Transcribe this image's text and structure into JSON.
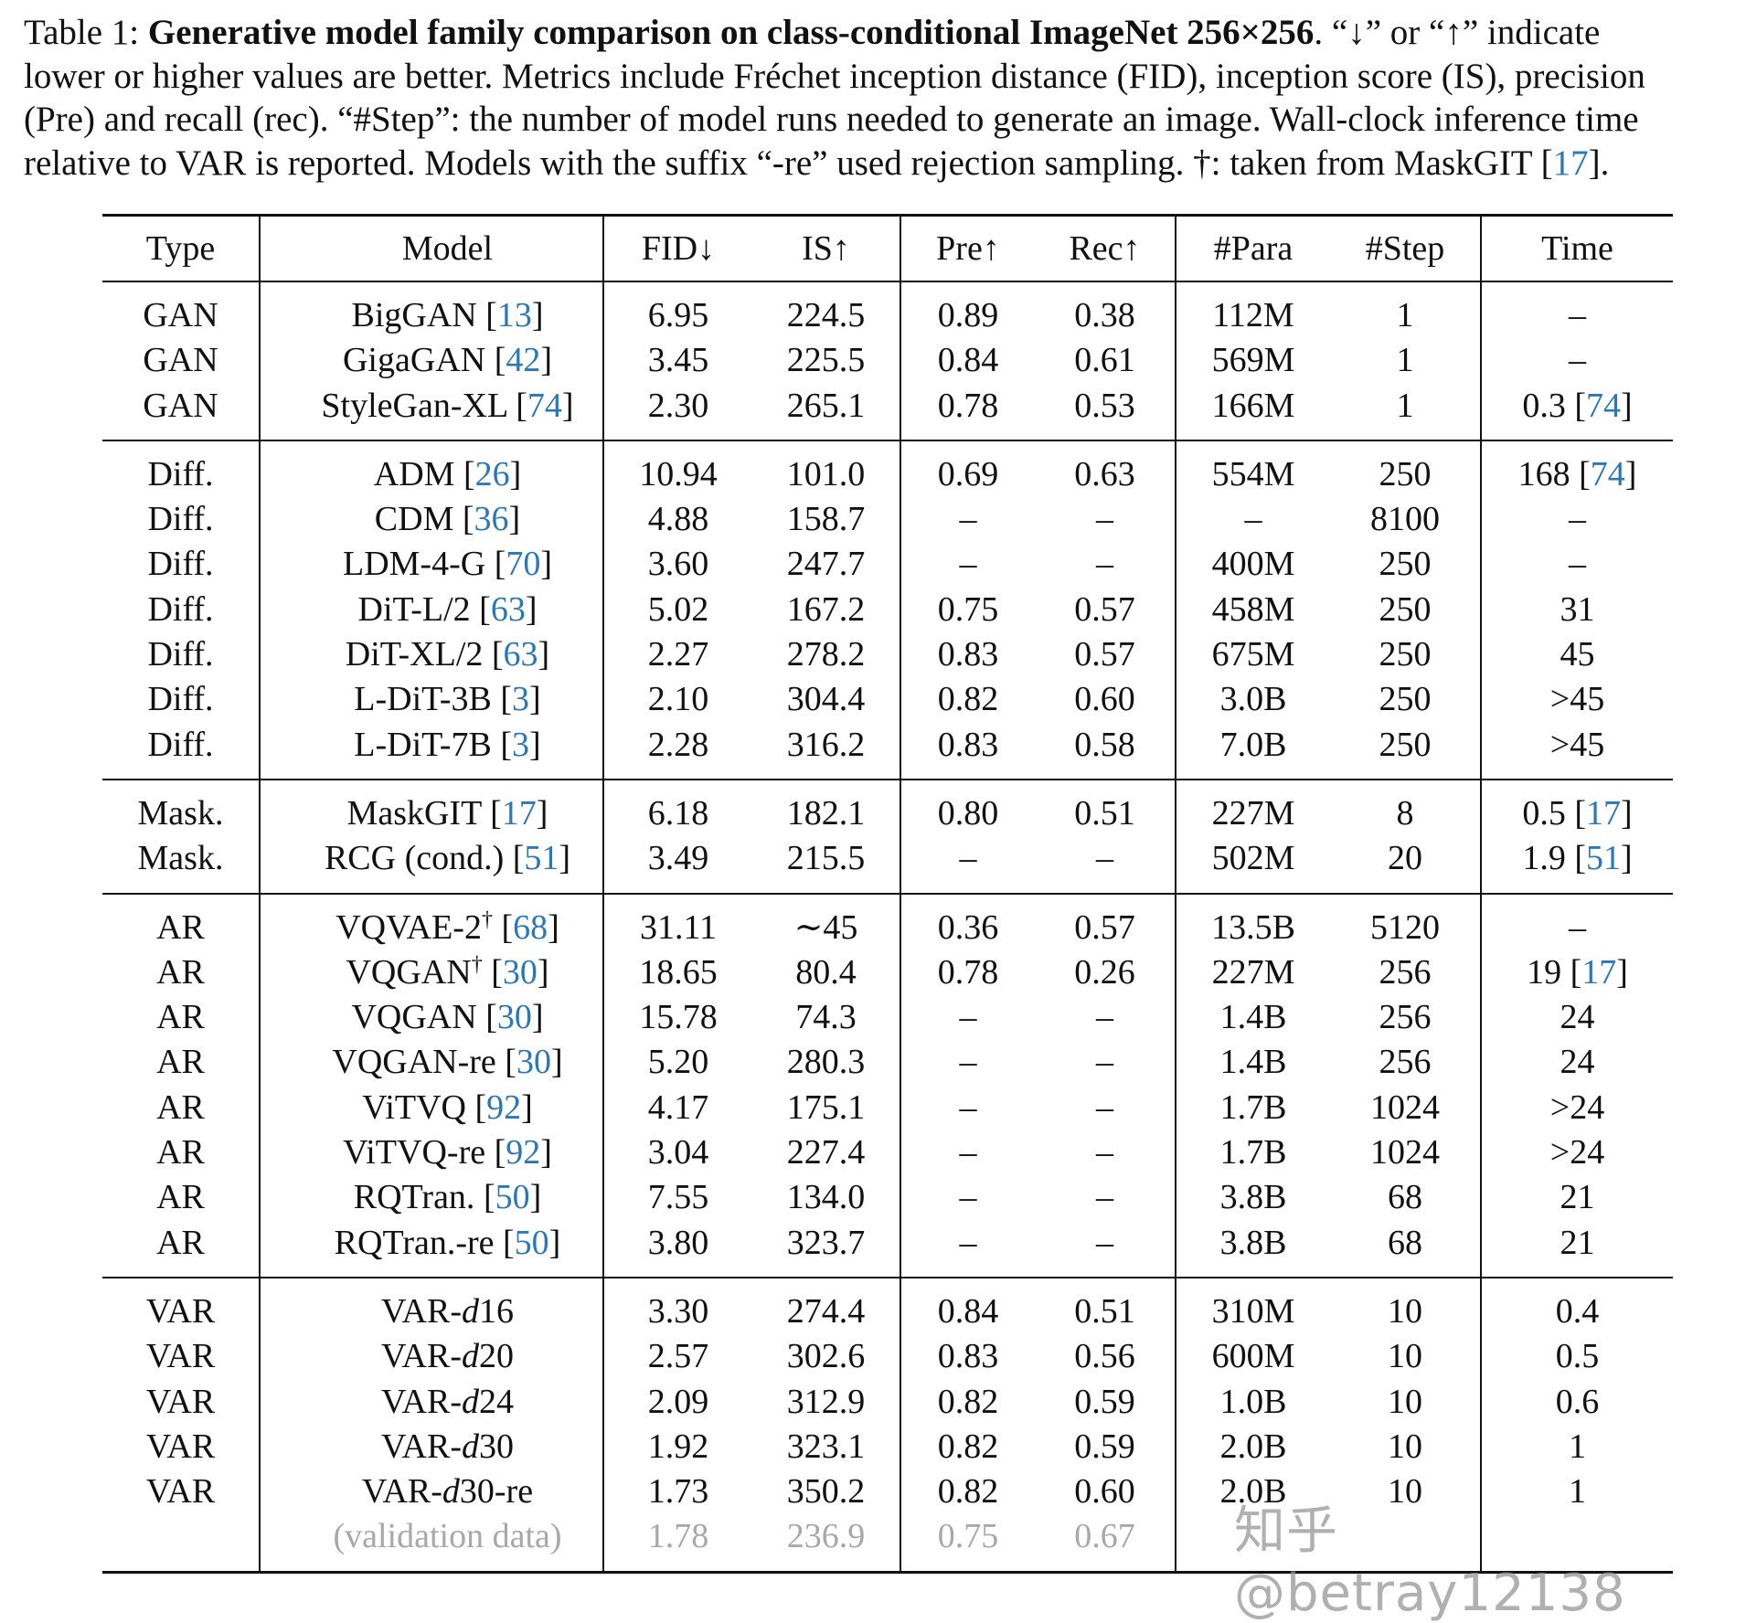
{
  "caption": {
    "label": "Table 1: ",
    "title": "Generative model family comparison on class-conditional ImageNet 256×256",
    "line1_rest": ". “↓” or “↑” indicate",
    "line2": "lower or higher values are better. Metrics include Fréchet inception distance (FID), inception score (IS), precision",
    "line3": "(Pre) and recall (rec). “#Step”: the number of model runs needed to generate an image. Wall-clock inference time",
    "line4": "relative to VAR is reported. Models with the suffix “-re” used rejection sampling. †: taken from MaskGIT [",
    "line4_ref": "17",
    "line4_end": "]."
  },
  "table": {
    "headers": {
      "type": "Type",
      "model": "Model",
      "fid": "FID↓",
      "is": "IS↑",
      "pre": "Pre↑",
      "rec": "Rec↑",
      "para": "#Para",
      "step": "#Step",
      "time": "Time"
    },
    "groups": [
      {
        "rows": [
          {
            "type": "GAN",
            "m1": "BigGAN ",
            "ref": "13",
            "fid": "6.95",
            "is": "224.5",
            "pre": "0.89",
            "rec": "0.38",
            "para": "112M",
            "step": "1",
            "time": "–",
            "bold": [
              "pre"
            ]
          },
          {
            "type": "GAN",
            "m1": "GigaGAN ",
            "ref": "42",
            "fid": "3.45",
            "is": "225.5",
            "pre": "0.84",
            "rec": "0.61",
            "para": "569M",
            "step": "1",
            "time": "–",
            "bold": [
              "rec"
            ]
          },
          {
            "type": "GAN",
            "m1": "StyleGan-XL ",
            "ref": "74",
            "fid": "2.30",
            "is": "265.1",
            "pre": "0.78",
            "rec": "0.53",
            "para": "166M",
            "step": "1",
            "time": "0.3 ",
            "time_ref": "74"
          }
        ]
      },
      {
        "rows": [
          {
            "type": "Diff.",
            "m1": "ADM ",
            "ref": "26",
            "fid": "10.94",
            "is": "101.0",
            "pre": "0.69",
            "rec": "0.63",
            "para": "554M",
            "step": "250",
            "time": "168 ",
            "time_ref": "74"
          },
          {
            "type": "Diff.",
            "m1": "CDM ",
            "ref": "36",
            "fid": "4.88",
            "is": "158.7",
            "pre": "–",
            "rec": "–",
            "para": "–",
            "step": "8100",
            "time": "–"
          },
          {
            "type": "Diff.",
            "m1": "LDM-4-G ",
            "ref": "70",
            "fid": "3.60",
            "is": "247.7",
            "pre": "–",
            "rec": "–",
            "para": "400M",
            "step": "250",
            "time": "–"
          },
          {
            "type": "Diff.",
            "m1": "DiT-L/2 ",
            "ref": "63",
            "fid": "5.02",
            "is": "167.2",
            "pre": "0.75",
            "rec": "0.57",
            "para": "458M",
            "step": "250",
            "time": "31"
          },
          {
            "type": "Diff.",
            "m1": "DiT-XL/2 ",
            "ref": "63",
            "fid": "2.27",
            "is": "278.2",
            "pre": "0.83",
            "rec": "0.57",
            "para": "675M",
            "step": "250",
            "time": "45"
          },
          {
            "type": "Diff.",
            "m1": "L-DiT-3B ",
            "ref": "3",
            "fid": "2.10",
            "is": "304.4",
            "pre": "0.82",
            "rec": "0.60",
            "para": "3.0B",
            "step": "250",
            "time": ">45"
          },
          {
            "type": "Diff.",
            "m1": "L-DiT-7B ",
            "ref": "3",
            "fid": "2.28",
            "is": "316.2",
            "pre": "0.83",
            "rec": "0.58",
            "para": "7.0B",
            "step": "250",
            "time": ">45"
          }
        ]
      },
      {
        "rows": [
          {
            "type": "Mask.",
            "m1": "MaskGIT ",
            "ref": "17",
            "fid": "6.18",
            "is": "182.1",
            "pre": "0.80",
            "rec": "0.51",
            "para": "227M",
            "step": "8",
            "time": "0.5 ",
            "time_ref": "17"
          },
          {
            "type": "Mask.",
            "m1": "RCG (cond.) ",
            "ref": "51",
            "fid": "3.49",
            "is": "215.5",
            "pre": "–",
            "rec": "–",
            "para": "502M",
            "step": "20",
            "time": "1.9 ",
            "time_ref": "51"
          }
        ]
      },
      {
        "rows": [
          {
            "type": "AR",
            "m1": "VQVAE-2",
            "sup": "†",
            "m3": " ",
            "ref": "68",
            "fid": "31.11",
            "is": "∼45",
            "pre": "0.36",
            "rec": "0.57",
            "para": "13.5B",
            "step": "5120",
            "time": "–"
          },
          {
            "type": "AR",
            "m1": "VQGAN",
            "sup": "†",
            "m3": " ",
            "ref": "30",
            "fid": "18.65",
            "is": "80.4",
            "pre": "0.78",
            "rec": "0.26",
            "para": "227M",
            "step": "256",
            "time": "19 ",
            "time_ref": "17"
          },
          {
            "type": "AR",
            "m1": "VQGAN ",
            "ref": "30",
            "fid": "15.78",
            "is": "74.3",
            "pre": "–",
            "rec": "–",
            "para": "1.4B",
            "step": "256",
            "time": "24"
          },
          {
            "type": "AR",
            "m1": "VQGAN-re ",
            "ref": "30",
            "fid": "5.20",
            "is": "280.3",
            "pre": "–",
            "rec": "–",
            "para": "1.4B",
            "step": "256",
            "time": "24"
          },
          {
            "type": "AR",
            "m1": "ViTVQ ",
            "ref": "92",
            "fid": "4.17",
            "is": "175.1",
            "pre": "–",
            "rec": "–",
            "para": "1.7B",
            "step": "1024",
            "time": ">24"
          },
          {
            "type": "AR",
            "m1": "ViTVQ-re ",
            "ref": "92",
            "fid": "3.04",
            "is": "227.4",
            "pre": "–",
            "rec": "–",
            "para": "1.7B",
            "step": "1024",
            "time": ">24"
          },
          {
            "type": "AR",
            "m1": "RQTran. ",
            "ref": "50",
            "fid": "7.55",
            "is": "134.0",
            "pre": "–",
            "rec": "–",
            "para": "3.8B",
            "step": "68",
            "time": "21"
          },
          {
            "type": "AR",
            "m1": "RQTran.-re ",
            "ref": "50",
            "fid": "3.80",
            "is": "323.7",
            "pre": "–",
            "rec": "–",
            "para": "3.8B",
            "step": "68",
            "time": "21"
          }
        ]
      },
      {
        "rows": [
          {
            "type": "VAR",
            "m1": "VAR-",
            "mi": "d",
            "m2": "16",
            "fid": "3.30",
            "is": "274.4",
            "pre": "0.84",
            "rec": "0.51",
            "para": "310M",
            "step": "10",
            "time": "0.4"
          },
          {
            "type": "VAR",
            "m1": "VAR-",
            "mi": "d",
            "m2": "20",
            "fid": "2.57",
            "is": "302.6",
            "pre": "0.83",
            "rec": "0.56",
            "para": "600M",
            "step": "10",
            "time": "0.5"
          },
          {
            "type": "VAR",
            "m1": "VAR-",
            "mi": "d",
            "m2": "24",
            "fid": "2.09",
            "is": "312.9",
            "pre": "0.82",
            "rec": "0.59",
            "para": "1.0B",
            "step": "10",
            "time": "0.6"
          },
          {
            "type": "VAR",
            "m1": "VAR-",
            "mi": "d",
            "m2": "30",
            "fid": "1.92",
            "is": "323.1",
            "pre": "0.82",
            "rec": "0.59",
            "para": "2.0B",
            "step": "10",
            "time": "1"
          },
          {
            "type": "VAR",
            "m1": "VAR-",
            "mi": "d",
            "m2": "30-re",
            "fid": "1.73",
            "is": "350.2",
            "pre": "0.82",
            "rec": "0.60",
            "para": "2.0B",
            "step": "10",
            "time": "1",
            "bold": [
              "fid",
              "is"
            ]
          },
          {
            "type": "",
            "m1": "(validation data)",
            "fid": "1.78",
            "is": "236.9",
            "pre": "0.75",
            "rec": "0.67",
            "para": "",
            "step": "",
            "time": "",
            "gray": true
          }
        ]
      }
    ]
  },
  "watermark": "知乎 @betray12138"
}
